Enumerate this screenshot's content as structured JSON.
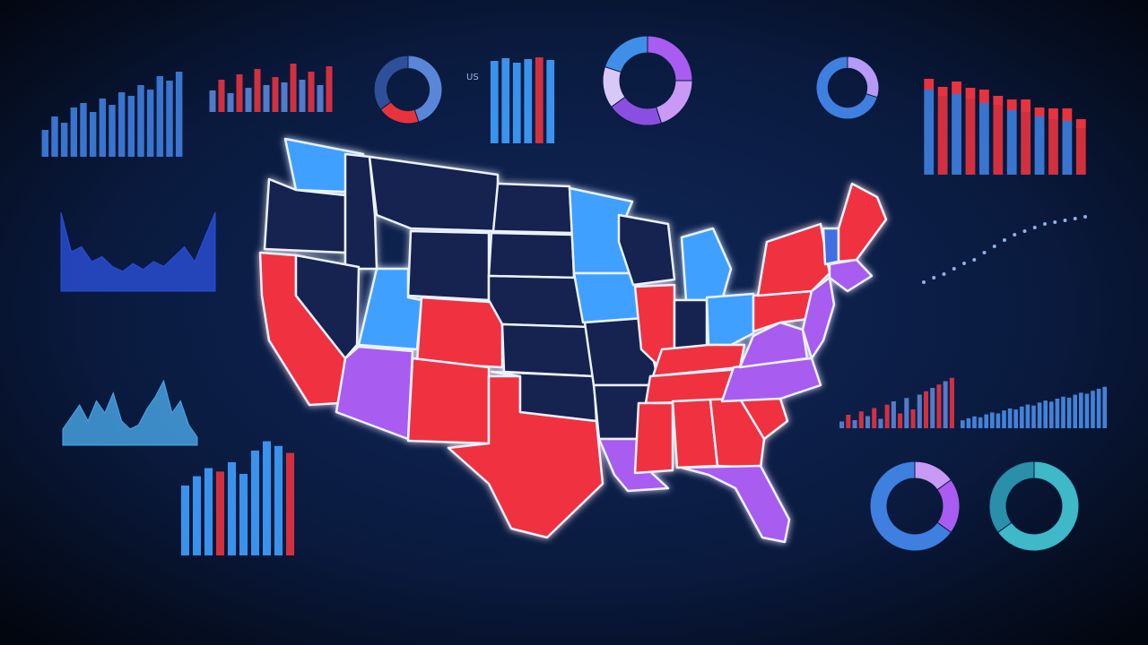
{
  "label": "US",
  "widgets": [
    {
      "type": "bars",
      "values": [
        30,
        45,
        38,
        55,
        60,
        50,
        65,
        58,
        72,
        68,
        80,
        75,
        90,
        85,
        95
      ],
      "colors": [
        "#3f7fe0"
      ]
    },
    {
      "type": "bars",
      "values": [
        40,
        60,
        35,
        70,
        45,
        80,
        50,
        65,
        55,
        90,
        60,
        75,
        50,
        85
      ],
      "colors": [
        "#5a86d8",
        "#e8333f"
      ]
    },
    {
      "type": "bars",
      "values": [
        92,
        95,
        90,
        94,
        96,
        93
      ],
      "colors": [
        "#3fa0ff",
        "#3fa0ff",
        "#3fa0ff",
        "#3fa0ff",
        "#e8333f",
        "#3fa0ff"
      ]
    },
    {
      "type": "stacked",
      "values": [
        95,
        88,
        90,
        85,
        80,
        78,
        72,
        70,
        65,
        62,
        60,
        52
      ],
      "top": [
        12,
        10,
        14,
        12,
        15,
        10,
        12,
        14,
        10,
        12,
        14,
        10
      ],
      "colors": [
        "#3f7fe0",
        "#e8333f"
      ]
    },
    {
      "type": "bars",
      "values": [
        60,
        68,
        75,
        72,
        80,
        70,
        90,
        98,
        94,
        88
      ],
      "colors": [
        "#3fa0ff",
        "#3fa0ff",
        "#3fa0ff",
        "#e8333f",
        "#3fa0ff",
        "#3fa0ff",
        "#3fa0ff",
        "#3fa0ff",
        "#3fa0ff",
        "#e8333f"
      ]
    },
    {
      "type": "bars",
      "values": [
        10,
        20,
        12,
        25,
        18,
        30,
        14,
        35,
        40,
        22,
        45,
        28,
        50,
        55,
        60,
        65,
        70,
        75
      ],
      "colors": [
        "#5a86d8",
        "#e8333f"
      ]
    },
    {
      "type": "bars",
      "values": [
        8,
        10,
        12,
        11,
        14,
        16,
        15,
        18,
        20,
        19,
        22,
        24,
        23,
        26,
        28,
        27,
        30,
        32,
        31,
        34,
        36,
        35,
        38,
        40,
        42
      ],
      "colors": [
        "#4a8ee8"
      ]
    },
    {
      "type": "area",
      "values": [
        80,
        40,
        45,
        30,
        35,
        25,
        20,
        28,
        22,
        30,
        25,
        35,
        45,
        30,
        55,
        80
      ],
      "colors": [
        "#2a4fd8"
      ]
    },
    {
      "type": "area",
      "values": [
        20,
        35,
        50,
        30,
        55,
        40,
        65,
        30,
        20,
        25,
        45,
        60,
        80,
        40,
        55,
        25,
        10
      ],
      "colors": [
        "#4aa8e8"
      ]
    },
    {
      "type": "dots",
      "values": [
        5,
        10,
        14,
        20,
        26,
        30,
        38,
        45,
        52,
        58,
        62,
        66,
        70,
        72,
        74,
        76,
        78
      ],
      "colors": [
        "#8fb0e8"
      ]
    },
    {
      "type": "donut",
      "values": [
        45,
        20,
        35
      ],
      "colors": [
        "#5a86d8",
        "#e8333f",
        "#2e4f9a"
      ]
    },
    {
      "type": "donut",
      "values": [
        25,
        20,
        20,
        15,
        20
      ],
      "colors": [
        "#a85cf0",
        "#c89af5",
        "#8a4fe0",
        "#d8c8f8",
        "#3f8fe8"
      ]
    },
    {
      "type": "donut",
      "values": [
        30,
        70
      ],
      "colors": [
        "#b79af5",
        "#3f7fe0"
      ]
    },
    {
      "type": "donut",
      "values": [
        15,
        20,
        65
      ],
      "colors": [
        "#c89af5",
        "#a85cf0",
        "#3f7fe0"
      ]
    },
    {
      "type": "donut",
      "values": [
        65,
        35
      ],
      "colors": [
        "#3fb8c8",
        "#2a8fa8"
      ]
    }
  ]
}
